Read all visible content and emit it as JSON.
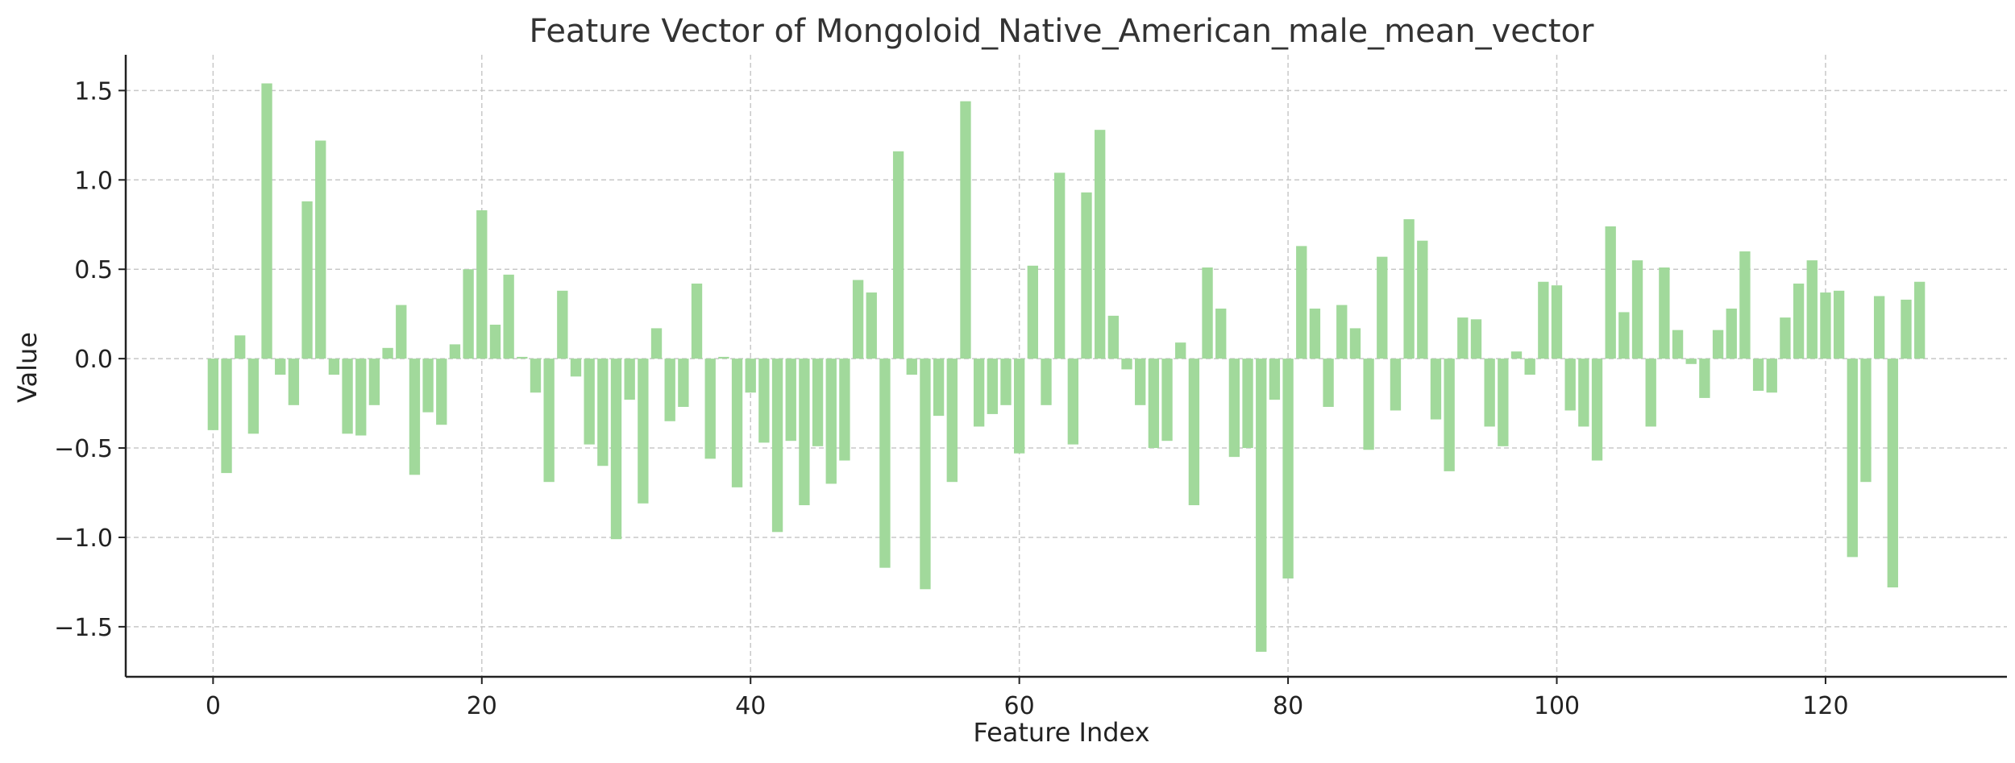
{
  "chart_data": {
    "type": "bar",
    "title": "Feature Vector of Mongoloid_Native_American_male_mean_vector",
    "xlabel": "Feature Index",
    "ylabel": "Value",
    "bar_color": "#a1d99b",
    "grid": true,
    "xlim": [
      -6.5,
      133.5
    ],
    "ylim": [
      -1.78,
      1.7
    ],
    "xticks": [
      0,
      20,
      40,
      60,
      80,
      100,
      120
    ],
    "yticks": [
      -1.5,
      -1.0,
      -0.5,
      0.0,
      0.5,
      1.0,
      1.5
    ],
    "ytick_labels": [
      "−1.5",
      "−1.0",
      "−0.5",
      "0.0",
      "0.5",
      "1.0",
      "1.5"
    ],
    "x": [
      0,
      1,
      2,
      3,
      4,
      5,
      6,
      7,
      8,
      9,
      10,
      11,
      12,
      13,
      14,
      15,
      16,
      17,
      18,
      19,
      20,
      21,
      22,
      23,
      24,
      25,
      26,
      27,
      28,
      29,
      30,
      31,
      32,
      33,
      34,
      35,
      36,
      37,
      38,
      39,
      40,
      41,
      42,
      43,
      44,
      45,
      46,
      47,
      48,
      49,
      50,
      51,
      52,
      53,
      54,
      55,
      56,
      57,
      58,
      59,
      60,
      61,
      62,
      63,
      64,
      65,
      66,
      67,
      68,
      69,
      70,
      71,
      72,
      73,
      74,
      75,
      76,
      77,
      78,
      79,
      80,
      81,
      82,
      83,
      84,
      85,
      86,
      87,
      88,
      89,
      90,
      91,
      92,
      93,
      94,
      95,
      96,
      97,
      98,
      99,
      100,
      101,
      102,
      103,
      104,
      105,
      106,
      107,
      108,
      109,
      110,
      111,
      112,
      113,
      114,
      115,
      116,
      117,
      118,
      119,
      120,
      121,
      122,
      123,
      124,
      125,
      126,
      127
    ],
    "values": [
      -0.4,
      -0.64,
      0.13,
      -0.42,
      1.54,
      -0.09,
      -0.26,
      0.88,
      1.22,
      -0.09,
      -0.42,
      -0.43,
      -0.26,
      0.06,
      0.3,
      -0.65,
      -0.3,
      -0.37,
      0.08,
      0.5,
      0.83,
      0.19,
      0.47,
      0.01,
      -0.19,
      -0.69,
      0.38,
      -0.1,
      -0.48,
      -0.6,
      -1.01,
      -0.23,
      -0.81,
      0.17,
      -0.35,
      -0.27,
      0.42,
      -0.56,
      0.01,
      -0.72,
      -0.19,
      -0.47,
      -0.97,
      -0.46,
      -0.82,
      -0.49,
      -0.7,
      -0.57,
      0.44,
      0.37,
      -1.17,
      1.16,
      -0.09,
      -1.29,
      -0.32,
      -0.69,
      1.44,
      -0.38,
      -0.31,
      -0.26,
      -0.53,
      0.52,
      -0.26,
      1.04,
      -0.48,
      0.93,
      1.28,
      0.24,
      -0.06,
      -0.26,
      -0.5,
      -0.46,
      0.09,
      -0.82,
      0.51,
      0.28,
      -0.55,
      -0.5,
      -1.64,
      -0.23,
      -1.23,
      0.63,
      0.28,
      -0.27,
      0.3,
      0.17,
      -0.51,
      0.57,
      -0.29,
      0.78,
      0.66,
      -0.34,
      -0.63,
      0.23,
      0.22,
      -0.38,
      -0.49,
      0.04,
      -0.09,
      0.43,
      0.41,
      -0.29,
      -0.38,
      -0.57,
      0.74,
      0.26,
      0.55,
      -0.38,
      0.51,
      0.16,
      -0.03,
      -0.22,
      0.16,
      0.28,
      0.6,
      -0.18,
      -0.19,
      0.23,
      0.42,
      0.55,
      0.37,
      0.38,
      -1.11,
      -0.69,
      0.35,
      -1.28,
      0.33,
      0.43
    ]
  }
}
